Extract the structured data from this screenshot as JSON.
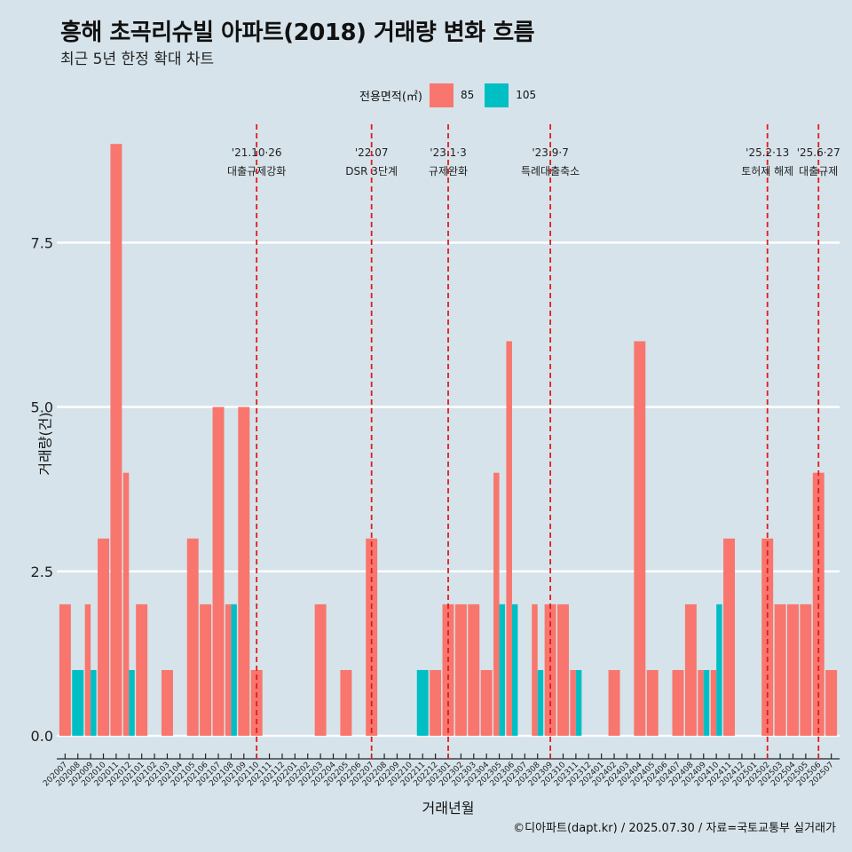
{
  "title": "흥해 초곡리슈빌 아파트(2018) 거래량 변화 흐름",
  "subtitle": "최근 5년 한정 확대 차트",
  "caption": "©디아파트(dapt.kr) / 2025.07.30 / 자료=국토교통부 실거래가",
  "legend": {
    "title": "전용면적(㎡)",
    "items": [
      {
        "label": "85",
        "color": "#f8766d"
      },
      {
        "label": "105",
        "color": "#00bfc4"
      }
    ]
  },
  "chart_data": {
    "type": "bar",
    "xlabel": "거래년월",
    "ylabel": "거래량(건)",
    "ylim": [
      -0.35,
      9.3
    ],
    "yticks": [
      0.0,
      2.5,
      5.0,
      7.5
    ],
    "ytick_labels": [
      "0.0",
      "2.5",
      "5.0",
      "7.5"
    ],
    "grid": true,
    "legend_position": "top",
    "categories": [
      "202007",
      "202008",
      "202009",
      "202010",
      "202011",
      "202012",
      "202101",
      "202102",
      "202103",
      "202104",
      "202105",
      "202106",
      "202107",
      "202108",
      "202109",
      "202110",
      "202111",
      "202112",
      "202201",
      "202202",
      "202203",
      "202204",
      "202205",
      "202206",
      "202207",
      "202208",
      "202209",
      "202210",
      "202211",
      "202212",
      "202301",
      "202302",
      "202303",
      "202304",
      "202305",
      "202306",
      "202307",
      "202308",
      "202309",
      "202310",
      "202311",
      "202312",
      "202401",
      "202402",
      "202403",
      "202404",
      "202405",
      "202406",
      "202407",
      "202408",
      "202409",
      "202410",
      "202411",
      "202412",
      "202501",
      "202502",
      "202503",
      "202504",
      "202505",
      "202506",
      "202507"
    ],
    "series": [
      {
        "name": "85",
        "color": "#f8766d",
        "values": [
          2,
          0,
          2,
          3,
          9,
          4,
          2,
          0,
          1,
          0,
          3,
          2,
          5,
          2,
          5,
          1,
          0,
          0,
          0,
          0,
          2,
          0,
          1,
          0,
          3,
          0,
          0,
          0,
          0,
          1,
          2,
          2,
          2,
          1,
          4,
          6,
          0,
          2,
          2,
          2,
          1,
          0,
          0,
          1,
          0,
          6,
          1,
          0,
          1,
          2,
          1,
          1,
          3,
          0,
          0,
          3,
          2,
          2,
          2,
          4,
          1
        ]
      },
      {
        "name": "105",
        "color": "#00bfc4",
        "values": [
          0,
          1,
          1,
          0,
          0,
          1,
          0,
          0,
          0,
          0,
          0,
          0,
          0,
          2,
          0,
          0,
          0,
          0,
          0,
          0,
          0,
          0,
          0,
          0,
          0,
          0,
          0,
          0,
          1,
          0,
          0,
          0,
          0,
          0,
          2,
          2,
          0,
          1,
          0,
          0,
          1,
          0,
          0,
          0,
          0,
          0,
          0,
          0,
          0,
          0,
          1,
          2,
          0,
          0,
          0,
          0,
          0,
          0,
          0,
          0,
          0
        ]
      }
    ],
    "annotations": [
      {
        "at": "202110",
        "date": "'21.10·26",
        "text": "대출규제강화"
      },
      {
        "at": "202207",
        "date": "'22.07",
        "text": "DSR 3단계"
      },
      {
        "at": "202301",
        "date": "'23.1·3",
        "text": "규제완화"
      },
      {
        "at": "202309",
        "date": "'23.9·7",
        "text": "특례대출축소"
      },
      {
        "at": "202502",
        "date": "'25.2·13",
        "text": "토허제 해제"
      },
      {
        "at": "202506",
        "date": "'25.6·27",
        "text": "대출규제"
      }
    ]
  }
}
